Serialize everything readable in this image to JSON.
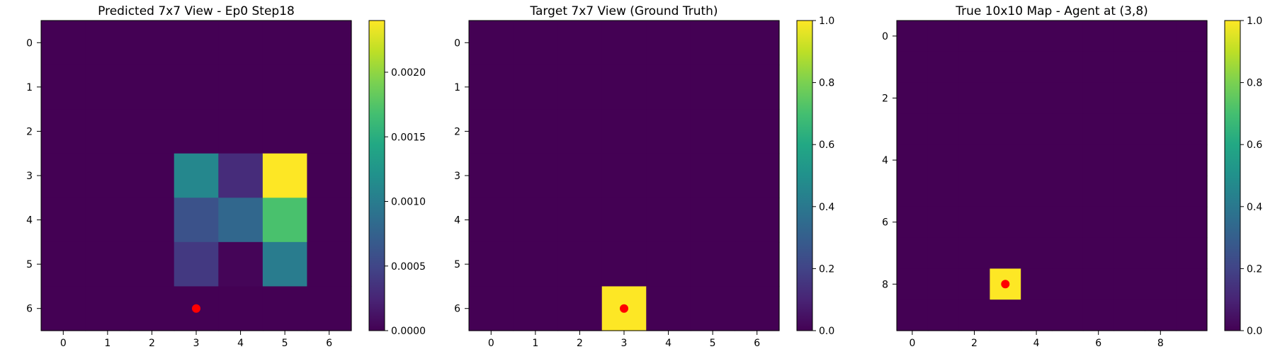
{
  "chart_data": [
    {
      "type": "heatmap",
      "title": "Predicted 7x7 View - Ep0 Step18",
      "xlabel": "",
      "ylabel": "",
      "rows": 7,
      "cols": 7,
      "x_ticks": [
        0,
        1,
        2,
        3,
        4,
        5,
        6
      ],
      "y_ticks": [
        0,
        1,
        2,
        3,
        4,
        5,
        6
      ],
      "colormap": "viridis",
      "vmin": 0,
      "vmax": 0.0024,
      "colorbar_ticks": [
        "0.0000",
        "0.0005",
        "0.0010",
        "0.0015",
        "0.0020"
      ],
      "values": [
        [
          0,
          0,
          0,
          0,
          0,
          0,
          0
        ],
        [
          0,
          0,
          0,
          0,
          0,
          0,
          0
        ],
        [
          0,
          0,
          0,
          0,
          0,
          0,
          0
        ],
        [
          0,
          0,
          0,
          0.0011,
          0.0003,
          0.0024,
          0
        ],
        [
          0,
          0,
          0,
          0.0006,
          0.0008,
          0.0017,
          0
        ],
        [
          0,
          0,
          0,
          0.0004,
          3e-05,
          0.001,
          0
        ],
        [
          0,
          0,
          0,
          0,
          0,
          0,
          0
        ]
      ],
      "agent_marker": {
        "x": 3,
        "y": 6,
        "color": "#ff0000"
      }
    },
    {
      "type": "heatmap",
      "title": "Target 7x7 View (Ground Truth)",
      "xlabel": "",
      "ylabel": "",
      "rows": 7,
      "cols": 7,
      "x_ticks": [
        0,
        1,
        2,
        3,
        4,
        5,
        6
      ],
      "y_ticks": [
        0,
        1,
        2,
        3,
        4,
        5,
        6
      ],
      "colormap": "viridis",
      "vmin": 0,
      "vmax": 1,
      "colorbar_ticks": [
        "0.0",
        "0.2",
        "0.4",
        "0.6",
        "0.8",
        "1.0"
      ],
      "values": [
        [
          0,
          0,
          0,
          0,
          0,
          0,
          0
        ],
        [
          0,
          0,
          0,
          0,
          0,
          0,
          0
        ],
        [
          0,
          0,
          0,
          0,
          0,
          0,
          0
        ],
        [
          0,
          0,
          0,
          0,
          0,
          0,
          0
        ],
        [
          0,
          0,
          0,
          0,
          0,
          0,
          0
        ],
        [
          0,
          0,
          0,
          0,
          0,
          0,
          0
        ],
        [
          0,
          0,
          0,
          1,
          0,
          0,
          0
        ]
      ],
      "agent_marker": {
        "x": 3,
        "y": 6,
        "color": "#ff0000"
      }
    },
    {
      "type": "heatmap",
      "title": "True 10x10 Map - Agent at (3,8)",
      "xlabel": "",
      "ylabel": "",
      "rows": 10,
      "cols": 10,
      "x_ticks": [
        0,
        2,
        4,
        6,
        8
      ],
      "y_ticks": [
        0,
        2,
        4,
        6,
        8
      ],
      "colormap": "viridis",
      "vmin": 0,
      "vmax": 1,
      "colorbar_ticks": [
        "0.0",
        "0.2",
        "0.4",
        "0.6",
        "0.8",
        "1.0"
      ],
      "values": [
        [
          0,
          0,
          0,
          0,
          0,
          0,
          0,
          0,
          0,
          0
        ],
        [
          0,
          0,
          0,
          0,
          0,
          0,
          0,
          0,
          0,
          0
        ],
        [
          0,
          0,
          0,
          0,
          0,
          0,
          0,
          0,
          0,
          0
        ],
        [
          0,
          0,
          0,
          0,
          0,
          0,
          0,
          0,
          0,
          0
        ],
        [
          0,
          0,
          0,
          0,
          0,
          0,
          0,
          0,
          0,
          0
        ],
        [
          0,
          0,
          0,
          0,
          0,
          0,
          0,
          0,
          0,
          0
        ],
        [
          0,
          0,
          0,
          0,
          0,
          0,
          0,
          0,
          0,
          0
        ],
        [
          0,
          0,
          0,
          0,
          0,
          0,
          0,
          0,
          0,
          0
        ],
        [
          0,
          0,
          0,
          1,
          0,
          0,
          0,
          0,
          0,
          0
        ],
        [
          0,
          0,
          0,
          0,
          0,
          0,
          0,
          0,
          0,
          0
        ]
      ],
      "agent_marker": {
        "x": 3,
        "y": 8,
        "color": "#ff0000"
      }
    }
  ]
}
